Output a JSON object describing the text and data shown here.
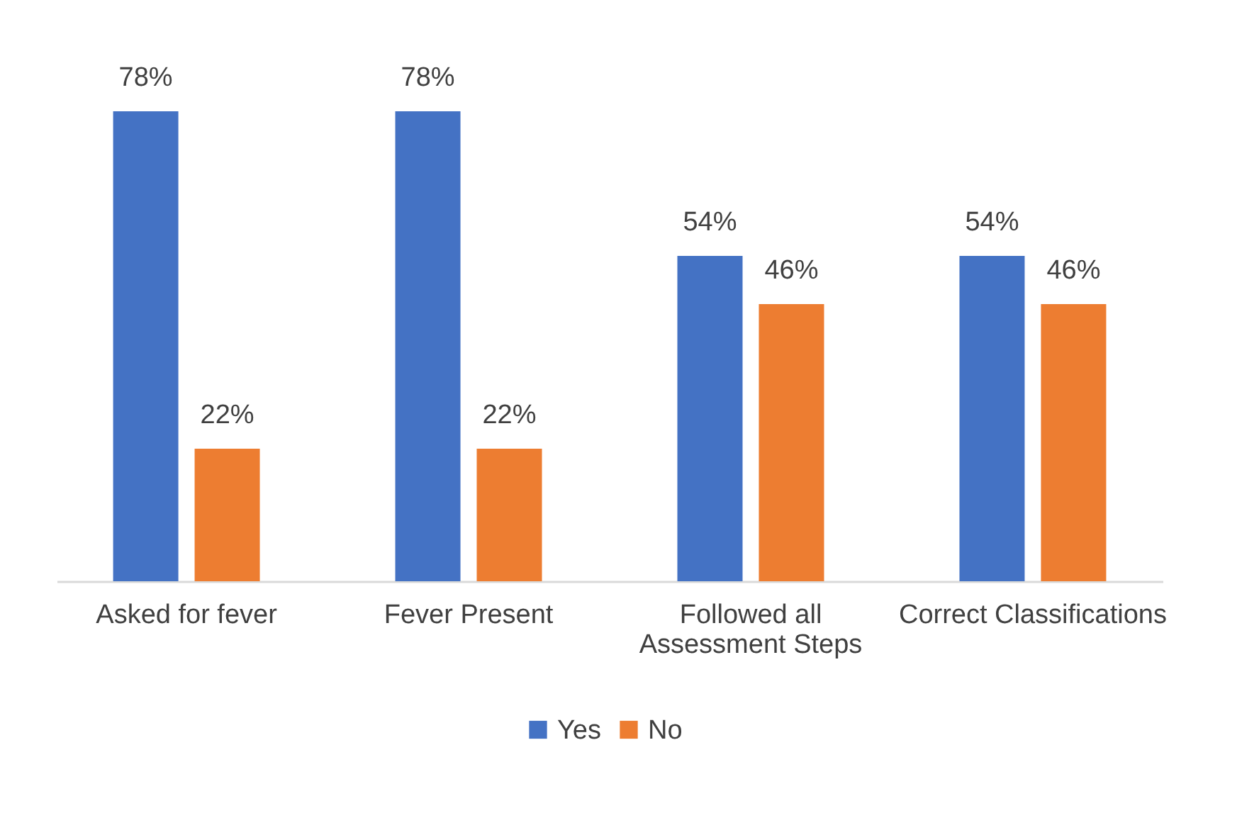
{
  "chart_data": {
    "type": "bar",
    "categories": [
      "Asked for fever",
      "Fever Present",
      "Followed all Assessment Steps",
      "Correct Classifications"
    ],
    "series": [
      {
        "name": "Yes",
        "color": "#4472c4",
        "values": [
          78,
          78,
          54,
          54
        ],
        "value_labels": [
          "78%",
          "78%",
          "54%",
          "54%"
        ]
      },
      {
        "name": "No",
        "color": "#ed7d31",
        "values": [
          22,
          22,
          46,
          46
        ],
        "value_labels": [
          "22%",
          "22%",
          "46%",
          "46%"
        ]
      }
    ],
    "legend": "bottom"
  }
}
